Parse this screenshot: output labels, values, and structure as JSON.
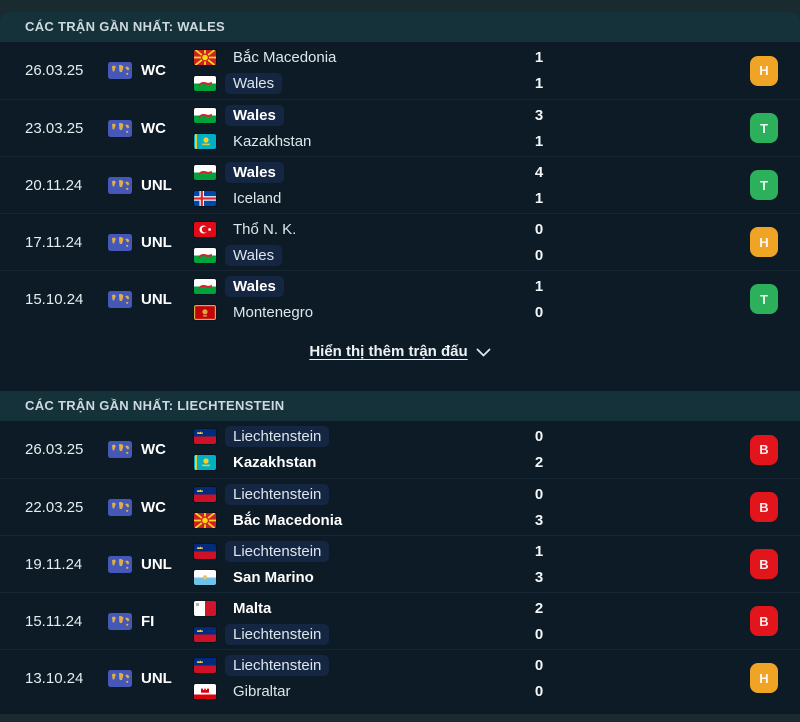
{
  "colors": {
    "win": "#2cb05b",
    "draw": "#f0a426",
    "loss": "#e3151c",
    "competition_icon_bg": "#4557b7",
    "focus_highlight": "#152642"
  },
  "sections": [
    {
      "title": "CÁC TRẬN GẦN NHẤT: WALES",
      "show_more": {
        "label": "Hiển thị thêm trận đấu"
      },
      "matches": [
        {
          "date": "26.03.25",
          "competition": "WC",
          "home": {
            "name": "Bắc Macedonia",
            "flag": "north-macedonia",
            "winner": false,
            "focus": false
          },
          "away": {
            "name": "Wales",
            "flag": "wales",
            "winner": false,
            "focus": true
          },
          "home_score": "1",
          "away_score": "1",
          "result": {
            "letter": "H",
            "status": "draw"
          }
        },
        {
          "date": "23.03.25",
          "competition": "WC",
          "home": {
            "name": "Wales",
            "flag": "wales",
            "winner": true,
            "focus": true
          },
          "away": {
            "name": "Kazakhstan",
            "flag": "kazakhstan",
            "winner": false,
            "focus": false
          },
          "home_score": "3",
          "away_score": "1",
          "result": {
            "letter": "T",
            "status": "win"
          }
        },
        {
          "date": "20.11.24",
          "competition": "UNL",
          "home": {
            "name": "Wales",
            "flag": "wales",
            "winner": true,
            "focus": true
          },
          "away": {
            "name": "Iceland",
            "flag": "iceland",
            "winner": false,
            "focus": false
          },
          "home_score": "4",
          "away_score": "1",
          "result": {
            "letter": "T",
            "status": "win"
          }
        },
        {
          "date": "17.11.24",
          "competition": "UNL",
          "home": {
            "name": "Thổ N. K.",
            "flag": "turkey",
            "winner": false,
            "focus": false
          },
          "away": {
            "name": "Wales",
            "flag": "wales",
            "winner": false,
            "focus": true
          },
          "home_score": "0",
          "away_score": "0",
          "result": {
            "letter": "H",
            "status": "draw"
          }
        },
        {
          "date": "15.10.24",
          "competition": "UNL",
          "home": {
            "name": "Wales",
            "flag": "wales",
            "winner": true,
            "focus": true
          },
          "away": {
            "name": "Montenegro",
            "flag": "montenegro",
            "winner": false,
            "focus": false
          },
          "home_score": "1",
          "away_score": "0",
          "result": {
            "letter": "T",
            "status": "win"
          }
        }
      ]
    },
    {
      "title": "CÁC TRẬN GẦN NHẤT: LIECHTENSTEIN",
      "matches": [
        {
          "date": "26.03.25",
          "competition": "WC",
          "home": {
            "name": "Liechtenstein",
            "flag": "liechtenstein",
            "winner": false,
            "focus": true
          },
          "away": {
            "name": "Kazakhstan",
            "flag": "kazakhstan",
            "winner": true,
            "focus": false
          },
          "home_score": "0",
          "away_score": "2",
          "result": {
            "letter": "B",
            "status": "loss"
          }
        },
        {
          "date": "22.03.25",
          "competition": "WC",
          "home": {
            "name": "Liechtenstein",
            "flag": "liechtenstein",
            "winner": false,
            "focus": true
          },
          "away": {
            "name": "Bắc Macedonia",
            "flag": "north-macedonia",
            "winner": true,
            "focus": false
          },
          "home_score": "0",
          "away_score": "3",
          "result": {
            "letter": "B",
            "status": "loss"
          }
        },
        {
          "date": "19.11.24",
          "competition": "UNL",
          "home": {
            "name": "Liechtenstein",
            "flag": "liechtenstein",
            "winner": false,
            "focus": true
          },
          "away": {
            "name": "San Marino",
            "flag": "san-marino",
            "winner": true,
            "focus": false
          },
          "home_score": "1",
          "away_score": "3",
          "result": {
            "letter": "B",
            "status": "loss"
          }
        },
        {
          "date": "15.11.24",
          "competition": "FI",
          "home": {
            "name": "Malta",
            "flag": "malta",
            "winner": true,
            "focus": false
          },
          "away": {
            "name": "Liechtenstein",
            "flag": "liechtenstein",
            "winner": false,
            "focus": true
          },
          "home_score": "2",
          "away_score": "0",
          "result": {
            "letter": "B",
            "status": "loss"
          }
        },
        {
          "date": "13.10.24",
          "competition": "UNL",
          "home": {
            "name": "Liechtenstein",
            "flag": "liechtenstein",
            "winner": false,
            "focus": true
          },
          "away": {
            "name": "Gibraltar",
            "flag": "gibraltar",
            "winner": false,
            "focus": false
          },
          "home_score": "0",
          "away_score": "0",
          "result": {
            "letter": "H",
            "status": "draw"
          }
        }
      ]
    }
  ]
}
